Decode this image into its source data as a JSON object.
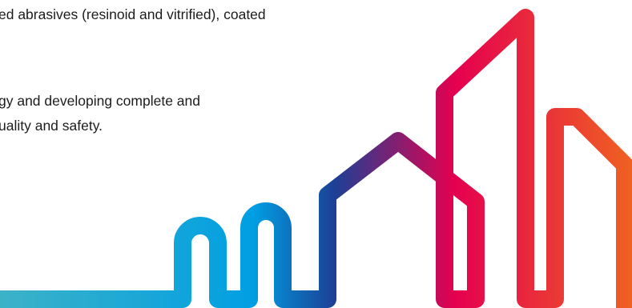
{
  "content": {
    "lines": [
      "ed abrasives (resinoid and vitrified), coated",
      "gy and developing complete and",
      "uality and safety."
    ]
  },
  "graphic": {
    "name": "abstract-city-skyline",
    "gradient_colors": [
      "#3cb2c7",
      "#009fe3",
      "#1d3f95",
      "#e5004f",
      "#ef6122"
    ]
  }
}
